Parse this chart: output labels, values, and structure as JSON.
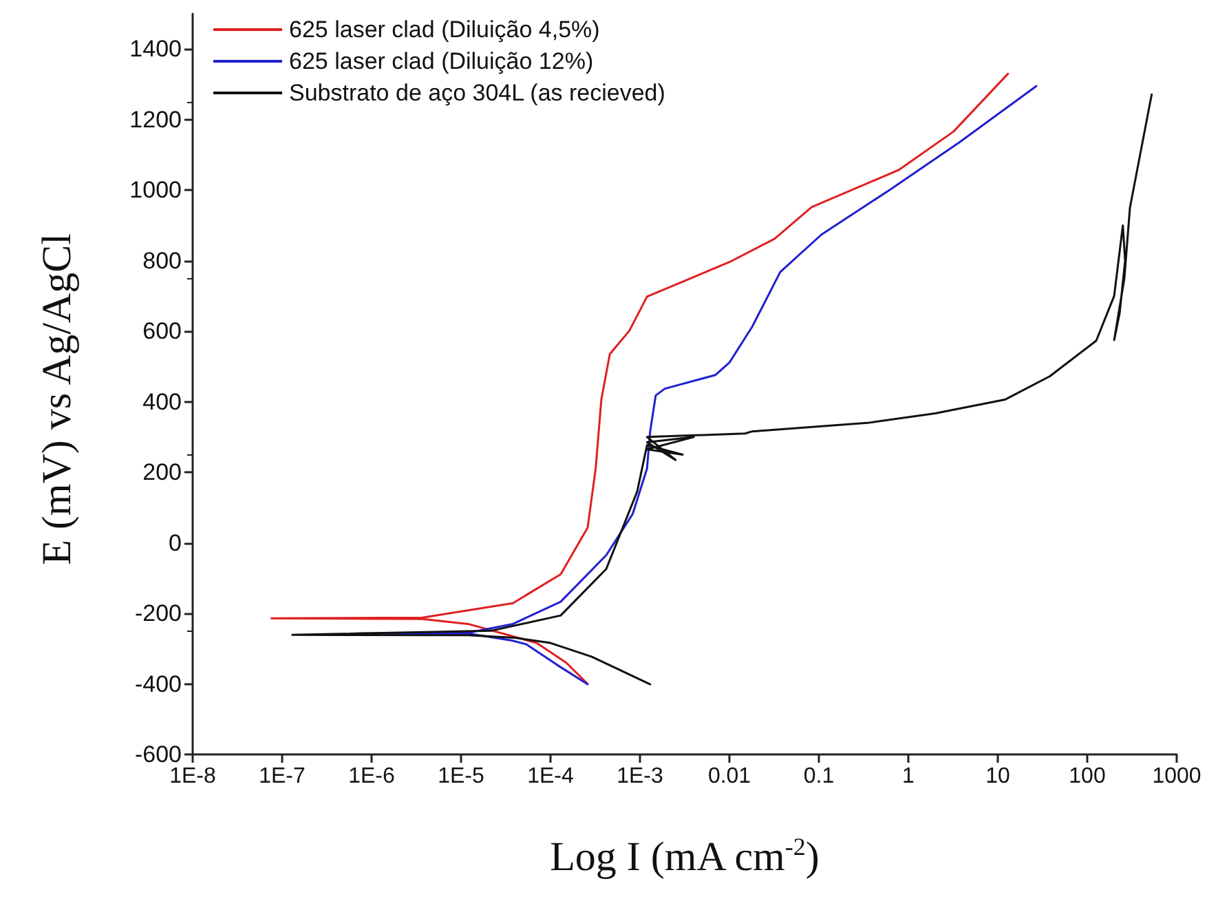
{
  "chart_data": {
    "type": "line",
    "xlabel": "Log I (mA cm$^{-2}$)",
    "ylabel": "E (mV) vs Ag/AgCl",
    "log": "x",
    "xlim": [
      1e-08,
      1000
    ],
    "xticks": [
      {
        "value": 1e-08,
        "label": "1E-8"
      },
      {
        "value": 1e-07,
        "label": "1E-7"
      },
      {
        "value": 1e-06,
        "label": "1E-6"
      },
      {
        "value": 1e-05,
        "label": "1E-5"
      },
      {
        "value": 0.0001,
        "label": "1E-4"
      },
      {
        "value": 0.001,
        "label": "1E-3"
      },
      0.01,
      0.1,
      1,
      10,
      100,
      1000
    ],
    "ylim": [
      -600,
      1500
    ],
    "yticks": [
      -600,
      -400,
      -200,
      0,
      200,
      400,
      600,
      800,
      1000,
      1200,
      1400
    ],
    "grid": false,
    "legend": "top left",
    "marker": "none",
    "line_style": "solid",
    "series": [
      {
        "name": "625 laser clad (Diluição 4,5%)",
        "color": "#e02020",
        "x": [
          0.00026,
          0.00015,
          7e-05,
          1.2e-05,
          3.7e-06,
          7.6e-08,
          3.7e-06,
          3.8e-05,
          0.00013,
          0.00026,
          0.00032,
          0.00037,
          0.00046,
          0.00076,
          0.0012,
          0.01,
          0.032,
          0.083,
          0.78,
          3.2,
          13
        ],
        "values": [
          -400,
          -340,
          -284,
          -230,
          -216,
          -214,
          -212,
          -171,
          -89,
          43,
          211,
          406,
          535,
          601,
          698,
          796,
          862,
          952,
          1057,
          1166,
          1330
        ]
      },
      {
        "name": "625 laser clad (Diluição 12%)",
        "color": "#2020d0",
        "x": [
          0.00026,
          0.00012,
          5.4e-05,
          3.7e-05,
          1.2e-05,
          7e-07,
          1.2e-05,
          3.8e-05,
          0.00013,
          0.00042,
          0.00083,
          0.0012,
          0.0013,
          0.0015,
          0.0019,
          0.007,
          0.01,
          0.018,
          0.037,
          0.107,
          0.63,
          3.7,
          27
        ],
        "values": [
          -401,
          -347,
          -288,
          -277,
          -257,
          -257,
          -255,
          -230,
          -167,
          -35,
          82,
          211,
          316,
          418,
          437,
          476,
          511,
          613,
          768,
          874,
          1002,
          1135,
          1295
        ]
      },
      {
        "name": "Substrato de aço 304L (as recieved)",
        "color": "#111111",
        "x": [
          0.0013,
          0.00029,
          0.0001,
          4e-05,
          1.2e-05,
          1.3e-07,
          2.2e-05,
          0.00013,
          0.00042,
          0.00093,
          0.0012,
          0.003,
          0.0012,
          0.004,
          0.0012,
          0.0025,
          0.0012,
          0.015,
          0.018,
          0.35,
          2,
          12,
          38,
          126,
          200,
          250,
          265,
          230,
          200,
          260,
          300,
          525
        ],
        "values": [
          -401,
          -323,
          -284,
          -269,
          -262,
          -261,
          -249,
          -206,
          -74,
          145,
          277,
          250,
          265,
          300,
          285,
          235,
          300,
          310,
          316,
          340,
          367,
          406,
          472,
          573,
          700,
          900,
          800,
          650,
          575,
          750,
          950,
          1271
        ]
      }
    ]
  }
}
